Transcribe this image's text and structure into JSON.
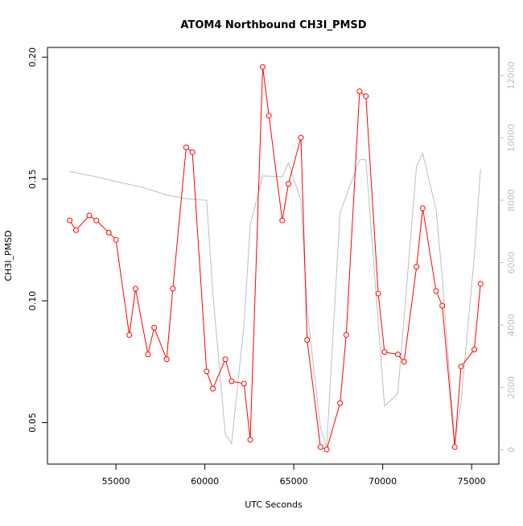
{
  "chart_data": {
    "type": "line",
    "title": "ATOM4 Northbound CH3I_PMSD",
    "xlabel": "UTC Seconds",
    "ylabel": "CH3I_PMSD",
    "xlim": [
      51150,
      76530
    ],
    "ylim": [
      0.033,
      0.204
    ],
    "y2lim": [
      -460,
      12900
    ],
    "x_ticks": [
      55000,
      60000,
      65000,
      70000,
      75000
    ],
    "x_tick_labels": [
      "55000",
      "60000",
      "65000",
      "70000",
      "75000"
    ],
    "y_ticks": [
      0.05,
      0.1,
      0.15,
      0.2
    ],
    "y_tick_labels": [
      "0.05",
      "0.10",
      "0.15",
      "0.20"
    ],
    "y2_ticks": [
      0,
      2000,
      4000,
      6000,
      8000,
      10000,
      12000
    ],
    "y2_tick_labels": [
      "0",
      "2000",
      "4000",
      "6000",
      "8000",
      "10000",
      "12000"
    ],
    "grid": false,
    "legend": "none",
    "colors": {
      "primary": "#ff0000",
      "secondary": "#bebebe",
      "axis": "#000000"
    },
    "series": [
      {
        "axis": "left",
        "marker": "open-circle",
        "x": [
          52400,
          52750,
          53500,
          53900,
          54600,
          55000,
          55750,
          56100,
          56800,
          57150,
          57850,
          58200,
          58950,
          59300,
          60100,
          60450,
          61150,
          61500,
          62200,
          62550,
          63250,
          63600,
          64350,
          64700,
          65400,
          65750,
          66500,
          66850,
          67600,
          67950,
          68700,
          69050,
          69750,
          70100,
          70850,
          71200,
          71900,
          72250,
          73000,
          73350,
          74050,
          74400,
          75150,
          75500
        ],
        "y": [
          0.133,
          0.129,
          0.135,
          0.133,
          0.128,
          0.125,
          0.086,
          0.105,
          0.078,
          0.089,
          0.076,
          0.105,
          0.163,
          0.161,
          0.071,
          0.064,
          0.076,
          0.067,
          0.066,
          0.043,
          0.196,
          0.176,
          0.133,
          0.148,
          0.167,
          0.084,
          0.04,
          0.039,
          0.058,
          0.086,
          0.186,
          0.184,
          0.103,
          0.079,
          0.078,
          0.075,
          0.114,
          0.138,
          0.104,
          0.098,
          0.04,
          0.073,
          0.08,
          0.107
        ]
      },
      {
        "axis": "right",
        "marker": "none",
        "x": [
          52400,
          53900,
          55000,
          56400,
          57850,
          58950,
          60100,
          60450,
          61150,
          61500,
          62200,
          62550,
          63250,
          64350,
          64700,
          65400,
          65750,
          66500,
          66850,
          67600,
          68700,
          69050,
          70100,
          70850,
          71900,
          72250,
          73000,
          73350,
          74050,
          74400,
          75150,
          75500
        ],
        "y": [
          8920,
          8750,
          8600,
          8430,
          8170,
          8050,
          8000,
          5000,
          500,
          200,
          4000,
          7200,
          8780,
          8750,
          9200,
          8000,
          4500,
          700,
          100,
          7600,
          9300,
          9300,
          1400,
          1800,
          9100,
          9500,
          7700,
          5500,
          250,
          1500,
          6200,
          9000
        ]
      }
    ]
  }
}
